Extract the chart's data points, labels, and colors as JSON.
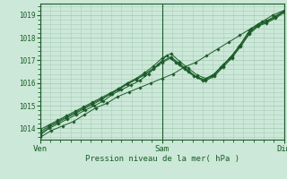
{
  "title": "Pression niveau de la mer( hPa )",
  "bg_color": "#cce8d8",
  "grid_color": "#aaccb8",
  "line_color": "#1a5c28",
  "marker_color": "#1a5c28",
  "ylim": [
    1013.5,
    1019.5
  ],
  "yticks": [
    1014,
    1015,
    1016,
    1017,
    1018,
    1019
  ],
  "x_labels": [
    "Ven",
    "Sam",
    "Dim"
  ],
  "x_ticks": [
    0,
    24,
    48
  ],
  "total_hours": 48,
  "series": [
    [
      1013.6,
      1013.9,
      1014.1,
      1014.3,
      1014.6,
      1014.9,
      1015.1,
      1015.4,
      1015.6,
      1015.8,
      1016.0,
      1016.2,
      1016.4,
      1016.7,
      1016.9,
      1017.2,
      1017.5,
      1017.8,
      1018.1,
      1018.4,
      1018.7,
      1019.0,
      1019.2
    ],
    [
      1013.7,
      1014.0,
      1014.2,
      1014.4,
      1014.6,
      1014.8,
      1015.0,
      1015.2,
      1015.5,
      1015.7,
      1015.9,
      1016.1,
      1016.4,
      1016.8,
      1017.2,
      1016.9,
      1016.6,
      1016.3,
      1016.1,
      1016.3,
      1016.7,
      1017.1,
      1017.6,
      1018.2,
      1018.5,
      1018.7,
      1018.9,
      1019.15
    ],
    [
      1013.75,
      1014.05,
      1014.25,
      1014.45,
      1014.65,
      1014.85,
      1015.05,
      1015.25,
      1015.5,
      1015.75,
      1016.0,
      1016.2,
      1016.45,
      1016.75,
      1017.1,
      1017.3,
      1016.95,
      1016.65,
      1016.35,
      1016.2,
      1016.4,
      1016.8,
      1017.2,
      1017.7,
      1018.3,
      1018.6,
      1018.75,
      1018.95,
      1019.2
    ],
    [
      1013.85,
      1014.1,
      1014.3,
      1014.5,
      1014.7,
      1014.9,
      1015.1,
      1015.3,
      1015.5,
      1015.7,
      1015.95,
      1016.15,
      1016.4,
      1016.65,
      1016.95,
      1017.15,
      1016.85,
      1016.55,
      1016.25,
      1016.15,
      1016.35,
      1016.75,
      1017.15,
      1017.65,
      1018.2,
      1018.55,
      1018.7,
      1018.9,
      1019.15
    ],
    [
      1013.95,
      1014.15,
      1014.35,
      1014.55,
      1014.75,
      1014.95,
      1015.15,
      1015.35,
      1015.55,
      1015.75,
      1015.95,
      1016.15,
      1016.35,
      1016.6,
      1016.9,
      1017.1,
      1016.8,
      1016.5,
      1016.25,
      1016.1,
      1016.3,
      1016.7,
      1017.1,
      1017.6,
      1018.15,
      1018.5,
      1018.65,
      1018.85,
      1019.1
    ]
  ]
}
